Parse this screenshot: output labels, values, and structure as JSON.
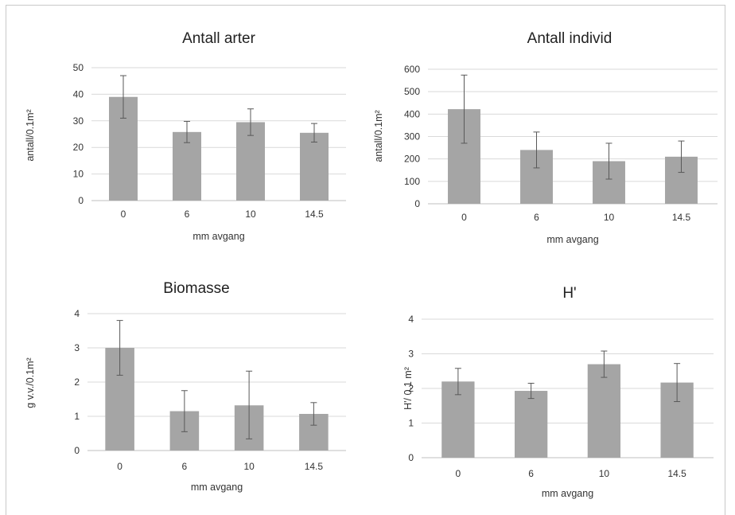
{
  "chart_data": [
    {
      "type": "bar",
      "title": "Antall arter",
      "xlabel": "mm avgang",
      "ylabel": "antall/0.1m²",
      "categories": [
        "0",
        "6",
        "10",
        "14.5"
      ],
      "values": [
        39,
        25.8,
        29.5,
        25.5
      ],
      "error_low": [
        8,
        4,
        5,
        3.5
      ],
      "error_high": [
        8,
        4,
        5,
        3.5
      ],
      "ylim": [
        0,
        50
      ],
      "yticks": [
        0,
        10,
        20,
        30,
        40,
        50
      ],
      "grid": true,
      "color": "#a5a5a5"
    },
    {
      "type": "bar",
      "title": "Antall individ",
      "xlabel": "mm avgang",
      "ylabel": "antall/0.1m²",
      "categories": [
        "0",
        "6",
        "10",
        "14.5"
      ],
      "values": [
        422,
        240,
        190,
        210
      ],
      "error_low": [
        152,
        80,
        80,
        70
      ],
      "error_high": [
        152,
        80,
        80,
        70
      ],
      "ylim": [
        0,
        600
      ],
      "yticks": [
        0,
        100,
        200,
        300,
        400,
        500,
        600
      ],
      "grid": true,
      "color": "#a5a5a5"
    },
    {
      "type": "bar",
      "title": "Biomasse",
      "xlabel": "mm avgang",
      "ylabel": "g v.v./0.1m²",
      "categories": [
        "0",
        "6",
        "10",
        "14.5"
      ],
      "values": [
        3.0,
        1.15,
        1.32,
        1.07
      ],
      "error_low": [
        0.8,
        0.6,
        0.98,
        0.33
      ],
      "error_high": [
        0.8,
        0.6,
        1.0,
        0.33
      ],
      "ylim": [
        0,
        4
      ],
      "yticks": [
        0,
        1,
        2,
        3,
        4
      ],
      "grid": true,
      "color": "#a5a5a5"
    },
    {
      "type": "bar",
      "title": "H'",
      "xlabel": "mm avgang",
      "ylabel": "H'/ 0.1 m²",
      "categories": [
        "0",
        "6",
        "10",
        "14.5"
      ],
      "values": [
        2.2,
        1.93,
        2.7,
        2.17
      ],
      "error_low": [
        0.38,
        0.22,
        0.38,
        0.55
      ],
      "error_high": [
        0.38,
        0.22,
        0.38,
        0.55
      ],
      "ylim": [
        0,
        4
      ],
      "yticks": [
        0,
        1,
        2,
        3,
        4
      ],
      "grid": true,
      "color": "#a5a5a5"
    }
  ]
}
